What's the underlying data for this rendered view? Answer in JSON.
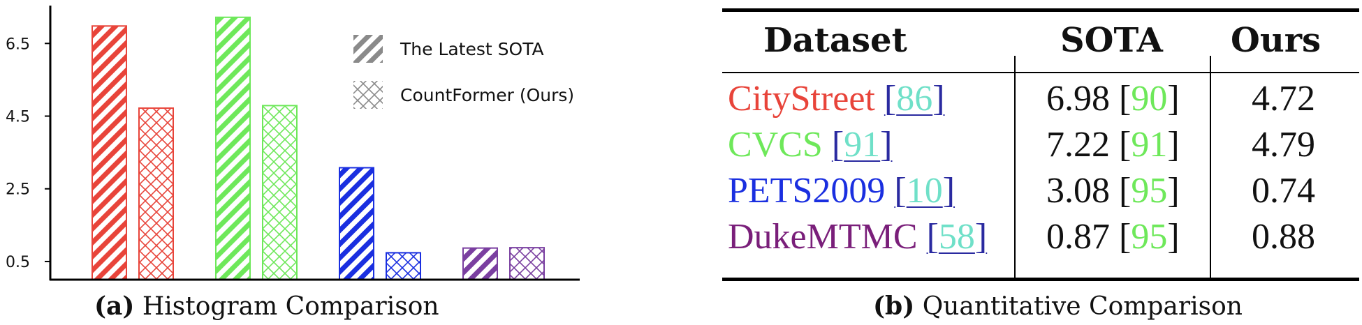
{
  "chart_data": [
    {
      "type": "bar",
      "categories": [
        "CityStreet",
        "CVCS",
        "PETS2009",
        "DukeMTMC"
      ],
      "series": [
        {
          "name": "The Latest SOTA",
          "values": [
            6.98,
            7.22,
            3.08,
            0.87
          ],
          "pattern": "diagonal-stripes"
        },
        {
          "name": "CountFormer (Ours)",
          "values": [
            4.72,
            4.79,
            0.74,
            0.88
          ],
          "pattern": "crosshatch"
        }
      ],
      "category_colors": [
        "#e8443a",
        "#6ee85a",
        "#1a2fe0",
        "#7a3fa0"
      ],
      "legend_color": "#8a8a8a",
      "yticks": [
        "0.5",
        "2.5",
        "4.5",
        "6.5"
      ],
      "ytick_values": [
        0.5,
        2.5,
        4.5,
        6.5
      ],
      "ylim": [
        0,
        7.35
      ],
      "legend": "top-right",
      "grid": false,
      "caption_bold": "(a)",
      "caption_text": "Histogram Comparison"
    },
    {
      "type": "table",
      "headers": [
        "Dataset",
        "SOTA",
        "Ours"
      ],
      "rows": [
        {
          "dataset": "CityStreet",
          "dataset_ref": "86",
          "sota": "6.98",
          "sota_ref": "90",
          "ours": "4.72",
          "color": "#e8443a"
        },
        {
          "dataset": "CVCS",
          "dataset_ref": "91",
          "sota": "7.22",
          "sota_ref": "91",
          "ours": "4.79",
          "color": "#6ee85a"
        },
        {
          "dataset": "PETS2009",
          "dataset_ref": "10",
          "sota": "3.08",
          "sota_ref": "95",
          "ours": "0.74",
          "color": "#1a2fe0"
        },
        {
          "dataset": "DukeMTMC",
          "dataset_ref": "58",
          "sota": "0.87",
          "sota_ref": "95",
          "ours": "0.88",
          "color": "#7a1f7a"
        }
      ],
      "ref_color_dataset": "#6fe0c8",
      "ref_color_sota": "#6ee85a",
      "bracket_color": "#2a2aa0",
      "caption_bold": "(b)",
      "caption_text": "Quantitative Comparison"
    }
  ]
}
